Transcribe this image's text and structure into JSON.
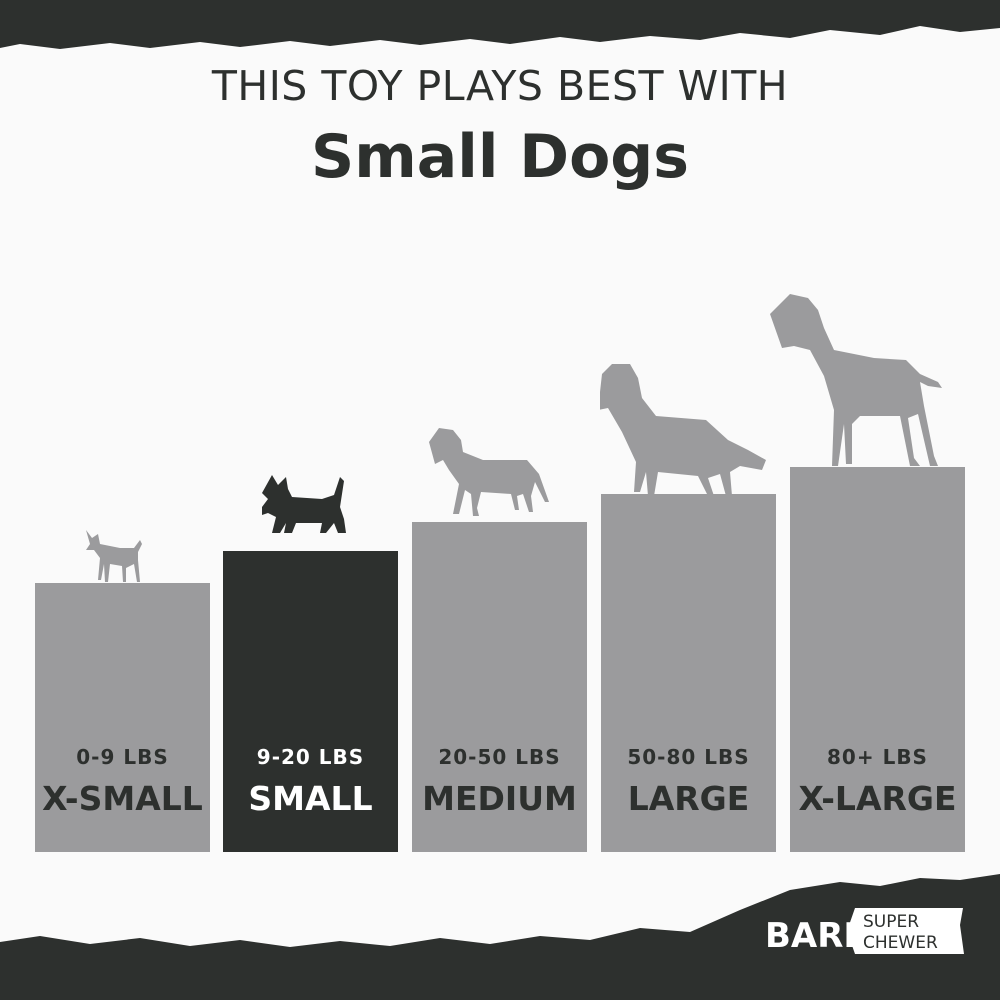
{
  "headline": {
    "line1": "THIS TOY PLAYS BEST WITH",
    "line2": "Small Dogs"
  },
  "sizes": [
    {
      "weight": "0-9 LBS",
      "label": "X-SMALL",
      "highlighted": false,
      "dog_icon": "chihuahua-silhouette"
    },
    {
      "weight": "9-20 LBS",
      "label": "SMALL",
      "highlighted": true,
      "dog_icon": "scottish-terrier-silhouette"
    },
    {
      "weight": "20-50 LBS",
      "label": "MEDIUM",
      "highlighted": false,
      "dog_icon": "labrador-silhouette"
    },
    {
      "weight": "50-80 LBS",
      "label": "LARGE",
      "highlighted": false,
      "dog_icon": "golden-retriever-silhouette"
    },
    {
      "weight": "80+ LBS",
      "label": "X-LARGE",
      "highlighted": false,
      "dog_icon": "great-dane-silhouette"
    }
  ],
  "brand": {
    "logo_text": "BARK",
    "tag_line1": "SUPER",
    "tag_line2": "CHEWER"
  },
  "colors": {
    "dark": "#2d302e",
    "gray": "#9b9b9d",
    "background": "#fafafa"
  }
}
